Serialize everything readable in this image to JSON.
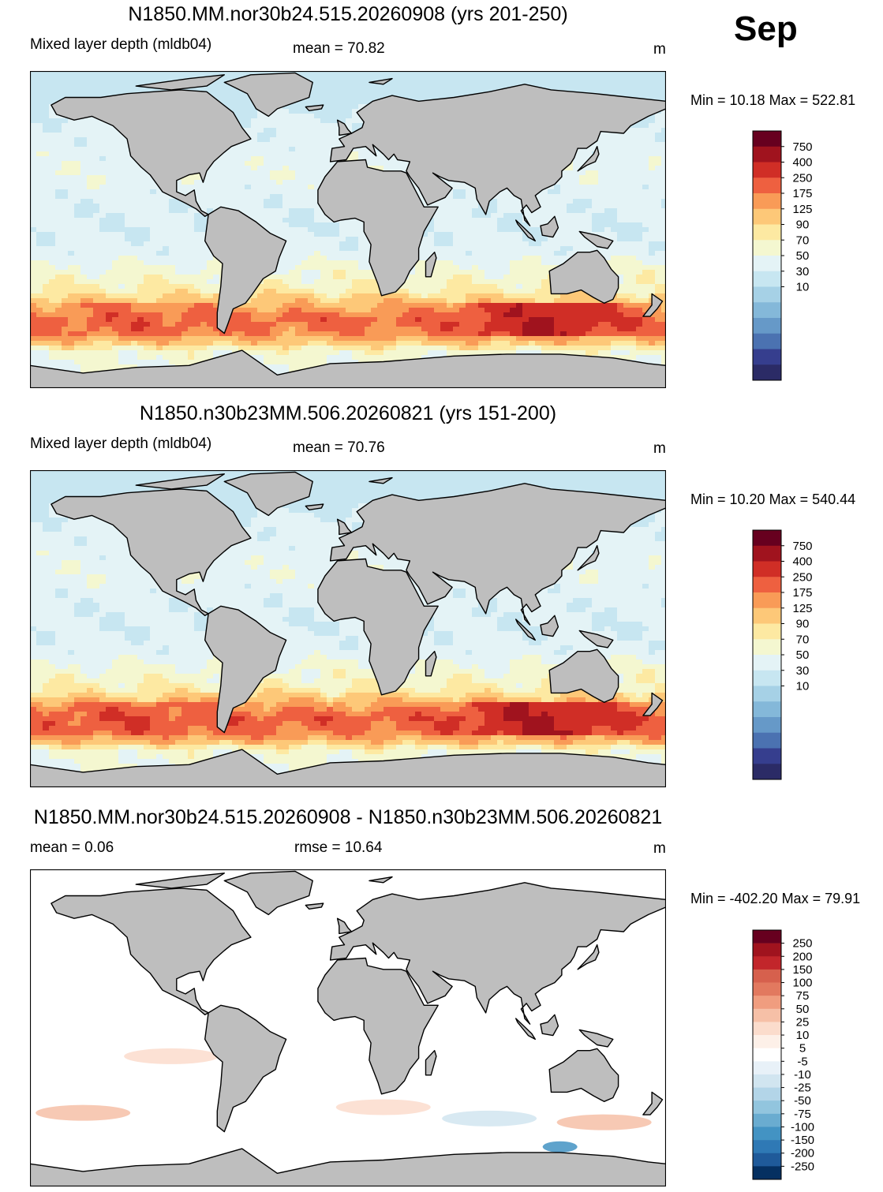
{
  "month": "Sep",
  "panels": [
    {
      "title": "N1850.MM.nor30b24.515.20260908 (yrs 201-250)",
      "left_label": "Mixed layer depth (mldb04)",
      "center_label": "mean =  70.82",
      "units": "m",
      "minmax": "Min =  10.18 Max = 522.81"
    },
    {
      "title": "N1850.n30b23MM.506.20260821 (yrs 151-200)",
      "left_label": "Mixed layer depth (mldb04)",
      "center_label": "mean =  70.76",
      "units": "m",
      "minmax": "Min =  10.20 Max = 540.44"
    },
    {
      "title": "N1850.MM.nor30b24.515.20260908 - N1850.n30b23MM.506.20260821",
      "left_label": "mean =   0.06",
      "center_label": "rmse =  10.64",
      "units": "m",
      "minmax": "Min = -402.20 Max =  79.91"
    }
  ],
  "chart_data": [
    {
      "type": "heatmap",
      "title": "N1850.MM.nor30b24.515.20260908 (yrs 201-250)",
      "variable": "Mixed layer depth (mldb04)",
      "units": "m",
      "mean": 70.82,
      "min": 10.18,
      "max": 522.81,
      "colorbar": {
        "labels": [
          "750",
          "400",
          "250",
          "175",
          "125",
          "90",
          "70",
          "50",
          "30",
          "10"
        ],
        "colors": [
          "#67001f",
          "#a0131e",
          "#d02e26",
          "#ee6040",
          "#f99b57",
          "#fdc878",
          "#fde9a2",
          "#f4f7d0",
          "#e4f3f6",
          "#c7e6f1",
          "#a6d1e6",
          "#84b8d9",
          "#6699c8",
          "#4b72b1",
          "#363e8e",
          "#2b2b66"
        ]
      },
      "zones": {
        "arctic": 15,
        "north_subpolar": 35,
        "north_subtropics": 45,
        "tropics": 35,
        "south_subtropics": 70,
        "southern_ocean_band": 200,
        "southern_ocean_max": 400,
        "antarctic_margin": 50
      }
    },
    {
      "type": "heatmap",
      "title": "N1850.n30b23MM.506.20260821 (yrs 151-200)",
      "variable": "Mixed layer depth (mldb04)",
      "units": "m",
      "mean": 70.76,
      "min": 10.2,
      "max": 540.44,
      "colorbar": {
        "labels": [
          "750",
          "400",
          "250",
          "175",
          "125",
          "90",
          "70",
          "50",
          "30",
          "10"
        ],
        "colors": [
          "#67001f",
          "#a0131e",
          "#d02e26",
          "#ee6040",
          "#f99b57",
          "#fdc878",
          "#fde9a2",
          "#f4f7d0",
          "#e4f3f6",
          "#c7e6f1",
          "#a6d1e6",
          "#84b8d9",
          "#6699c8",
          "#4b72b1",
          "#363e8e",
          "#2b2b66"
        ]
      },
      "zones": {
        "arctic": 15,
        "north_subpolar": 35,
        "north_subtropics": 45,
        "tropics": 35,
        "south_subtropics": 70,
        "southern_ocean_band": 220,
        "southern_ocean_max": 420,
        "antarctic_margin": 50
      }
    },
    {
      "type": "heatmap",
      "title": "N1850.MM.nor30b24.515.20260908 - N1850.n30b23MM.506.20260821",
      "units": "m",
      "mean": 0.06,
      "rmse": 10.64,
      "min": -402.2,
      "max": 79.91,
      "colorbar": {
        "labels": [
          "250",
          "200",
          "150",
          "100",
          "75",
          "50",
          "25",
          "10",
          "5",
          "-5",
          "-10",
          "-25",
          "-50",
          "-75",
          "-100",
          "-150",
          "-200",
          "-250"
        ],
        "colors": [
          "#67001f",
          "#a0131e",
          "#c2262b",
          "#d6604d",
          "#e2795f",
          "#f09d7f",
          "#f6c0a7",
          "#fbdccc",
          "#fdf0e8",
          "#ffffff",
          "#e8f1f8",
          "#d1e5f0",
          "#b3d5e8",
          "#92c5de",
          "#6aacd0",
          "#4393c3",
          "#2f79b5",
          "#1f5a9a",
          "#053061"
        ]
      },
      "anomalies": [
        {
          "lon": -150,
          "lat": -45,
          "value": 25
        },
        {
          "lon": -100,
          "lat": -15,
          "value": 10
        },
        {
          "lon": 20,
          "lat": -42,
          "value": 10
        },
        {
          "lon": 80,
          "lat": -48,
          "value": -25
        },
        {
          "lon": 145,
          "lat": -50,
          "value": 25
        },
        {
          "lon": 120,
          "lat": -63,
          "value": -150
        }
      ]
    }
  ]
}
